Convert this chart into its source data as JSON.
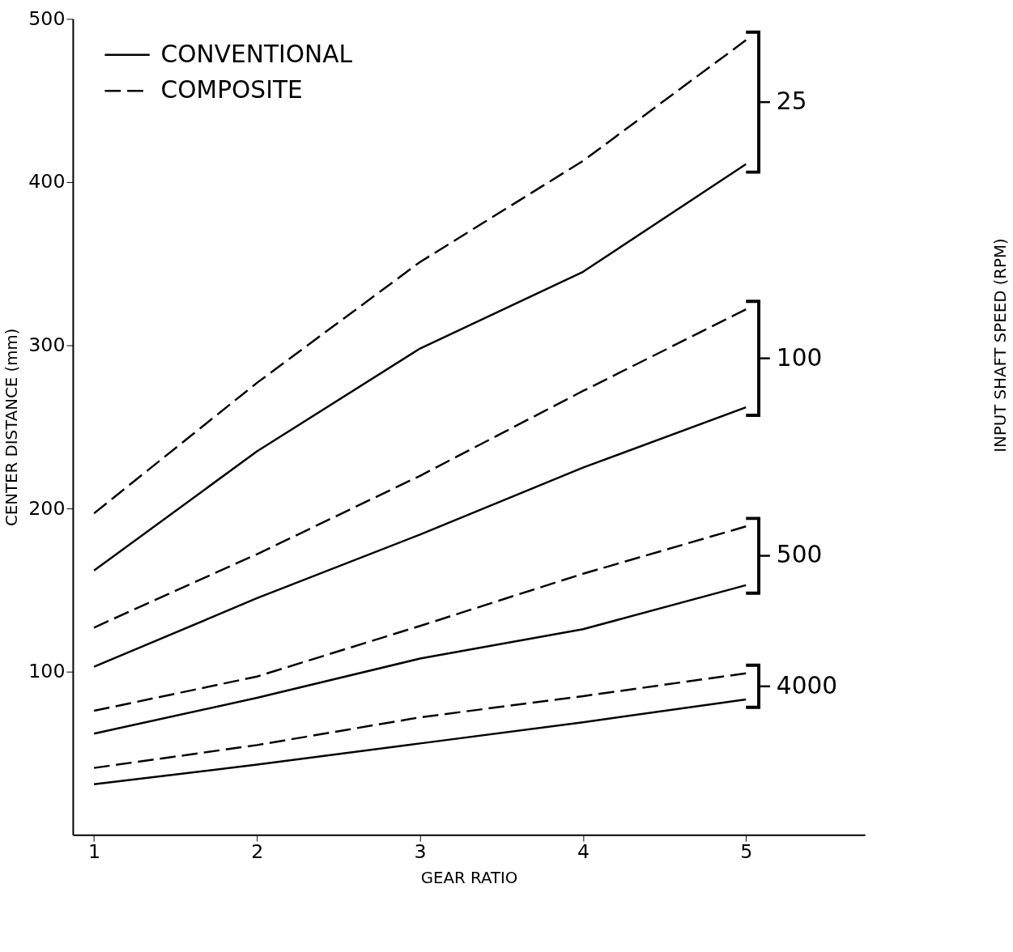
{
  "chart_data": {
    "type": "line",
    "xlabel": "GEAR RATIO",
    "ylabel": "CENTER DISTANCE (mm)",
    "x": [
      1,
      2,
      3,
      4,
      5
    ],
    "xlim": [
      0.87,
      5.73
    ],
    "ylim": [
      0,
      500
    ],
    "xticks": [
      1,
      2,
      3,
      4,
      5
    ],
    "yticks": [
      100,
      200,
      300,
      400,
      500
    ],
    "grid": false,
    "legend": "top left",
    "marker": "none",
    "series": [
      {
        "name": "CONVENTIONAL",
        "color": "#000000",
        "line_style": "solid",
        "values": [
          162,
          235,
          298,
          345,
          411
        ]
      },
      {
        "name": "COMPOSITE",
        "color": "#000000",
        "line_style": "dashed",
        "values": [
          197,
          277,
          351,
          413,
          487
        ]
      },
      {
        "color": "#000000",
        "line_style": "dashed",
        "values": [
          127,
          172,
          220,
          272,
          322
        ]
      },
      {
        "color": "#000000",
        "line_style": "solid",
        "values": [
          103,
          145,
          184,
          225,
          262
        ]
      },
      {
        "color": "#000000",
        "line_style": "dashed",
        "values": [
          76,
          97,
          128,
          160,
          189
        ]
      },
      {
        "color": "#000000",
        "line_style": "solid",
        "values": [
          62,
          84,
          108,
          126,
          153
        ]
      },
      {
        "color": "#000000",
        "line_style": "dashed",
        "values": [
          41,
          55,
          72,
          85,
          99
        ]
      },
      {
        "color": "#000000",
        "line_style": "solid",
        "values": [
          31,
          43,
          56,
          69,
          83
        ]
      }
    ],
    "annotations": [
      "25",
      "100",
      "500",
      "4000",
      "INPUT SHAFT SPEED (RPM)"
    ]
  }
}
